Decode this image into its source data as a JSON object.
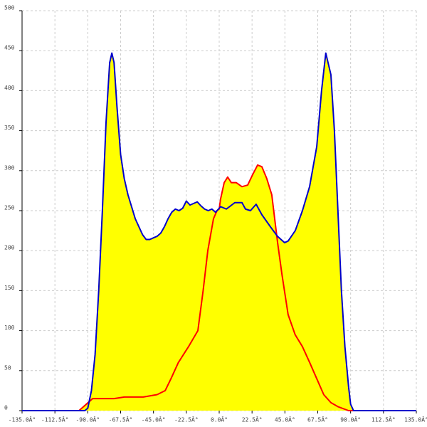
{
  "chart_data": {
    "type": "area",
    "xlim": [
      -135,
      135
    ],
    "xticks": [
      {
        "value": -135,
        "label": "-135.0Â°"
      },
      {
        "value": -112.5,
        "label": "-112.5Â°"
      },
      {
        "value": -90,
        "label": "-90.0Â°"
      },
      {
        "value": -67.5,
        "label": "-67.5Â°"
      },
      {
        "value": -45,
        "label": "-45.0Â°"
      },
      {
        "value": -22.5,
        "label": "-22.5Â°"
      },
      {
        "value": 0,
        "label": "0.0Â°"
      },
      {
        "value": 22.5,
        "label": "22.5Â°"
      },
      {
        "value": 45,
        "label": "45.0Â°"
      },
      {
        "value": 67.5,
        "label": "67.5Â°"
      },
      {
        "value": 90,
        "label": "90.0Â°"
      },
      {
        "value": 112.5,
        "label": "112.5Â°"
      },
      {
        "value": 135,
        "label": "135.0Â°"
      }
    ],
    "ylim": [
      0,
      500
    ],
    "yticks": [
      0,
      50,
      100,
      150,
      200,
      250,
      300,
      350,
      400,
      450,
      500
    ],
    "grid": true,
    "area_color": "#ffff00",
    "series": [
      {
        "color": "#ff0000",
        "x": [
          -135,
          -96,
          -86.7,
          -72,
          -65,
          -52,
          -42.5,
          -37,
          -33,
          -28,
          -21,
          -14.6,
          -11,
          -7.8,
          -3.9,
          -1.5,
          0,
          1,
          3.4,
          5.8,
          8.3,
          11.7,
          15.6,
          19.5,
          22.9,
          26.3,
          29.2,
          32.6,
          36,
          40,
          43,
          47.2,
          52,
          57,
          62,
          66.8,
          71.6,
          76.5,
          81.3,
          88.6,
          135
        ],
        "values": [
          0,
          0,
          15,
          15,
          17,
          17,
          20,
          25,
          40,
          60,
          80,
          100,
          150,
          200,
          240,
          250,
          252,
          265,
          285,
          292,
          285,
          285,
          280,
          282,
          295,
          307,
          305,
          290,
          270,
          210,
          170,
          120,
          95,
          80,
          60,
          40,
          20,
          10,
          5,
          0,
          0
        ]
      },
      {
        "color": "#0000cc",
        "x": [
          -135,
          -92,
          -90,
          -87.5,
          -85,
          -82.5,
          -80,
          -77.5,
          -75,
          -73.5,
          -72,
          -70,
          -67.5,
          -65,
          -62.5,
          -60,
          -57.5,
          -55,
          -52.5,
          -50,
          -47.5,
          -45,
          -42.5,
          -40,
          -37.5,
          -35,
          -32.5,
          -30,
          -27.5,
          -25,
          -22.5,
          -20,
          -17.5,
          -15,
          -12.5,
          -10,
          -7.5,
          -5,
          -2.5,
          1,
          4.9,
          10.7,
          15.6,
          18,
          21.4,
          25.3,
          29.2,
          35,
          39.9,
          44.8,
          47.2,
          52.1,
          57,
          61.9,
          66.8,
          70.1,
          73,
          76.5,
          78.9,
          81.3,
          83.7,
          86.1,
          88.6,
          90,
          92,
          135
        ],
        "values": [
          0,
          0,
          3,
          25,
          70,
          150,
          250,
          360,
          435,
          447,
          435,
          380,
          320,
          290,
          270,
          255,
          240,
          230,
          220,
          214,
          214,
          216,
          218,
          222,
          230,
          240,
          248,
          252,
          250,
          253,
          262,
          257,
          259,
          261,
          256,
          252,
          250,
          252,
          248,
          255,
          252,
          260,
          260,
          252,
          250,
          258,
          245,
          230,
          218,
          210,
          212,
          225,
          250,
          280,
          330,
          400,
          447,
          420,
          350,
          250,
          150,
          80,
          30,
          8,
          0,
          0
        ]
      }
    ]
  }
}
